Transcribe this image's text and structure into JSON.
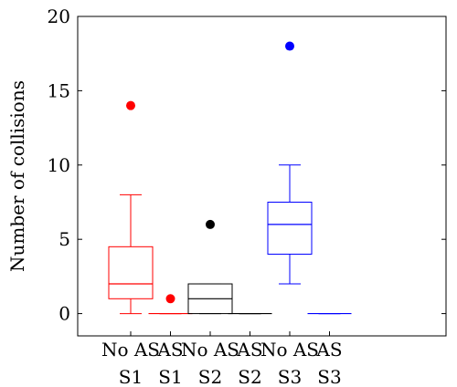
{
  "chart_data": {
    "type": "box",
    "xlabel": "",
    "ylabel": "Number of collisions",
    "ylim": [
      -1.5,
      20
    ],
    "yticks": [
      0,
      5,
      10,
      15,
      20
    ],
    "grid": false,
    "categories": [
      {
        "line1": "No AS",
        "line2": "S1"
      },
      {
        "line1": "AS",
        "line2": "S1"
      },
      {
        "line1": "No AS",
        "line2": "S2"
      },
      {
        "line1": "AS",
        "line2": "S2"
      },
      {
        "line1": "No AS",
        "line2": "S3"
      },
      {
        "line1": "AS",
        "line2": "S3"
      }
    ],
    "boxes": [
      {
        "category": "No AS S1",
        "color": "#ff0000",
        "whisker_low": 0,
        "q1": 1,
        "median": 2,
        "q3": 4.5,
        "whisker_high": 8,
        "outliers": [
          14
        ]
      },
      {
        "category": "AS S1",
        "color": "#ff0000",
        "whisker_low": 0,
        "q1": 0,
        "median": 0,
        "q3": 0,
        "whisker_high": 0,
        "outliers": [
          1
        ]
      },
      {
        "category": "No AS S2",
        "color": "#000000",
        "whisker_low": 0,
        "q1": 0,
        "median": 1,
        "q3": 2,
        "whisker_high": 2,
        "outliers": [
          6
        ]
      },
      {
        "category": "AS S2",
        "color": "#000000",
        "whisker_low": 0,
        "q1": 0,
        "median": 0,
        "q3": 0,
        "whisker_high": 0,
        "outliers": []
      },
      {
        "category": "No AS S3",
        "color": "#0000ff",
        "whisker_low": 2,
        "q1": 4,
        "median": 6,
        "q3": 7.5,
        "whisker_high": 10,
        "outliers": [
          18
        ]
      },
      {
        "category": "AS S3",
        "color": "#0000ff",
        "whisker_low": 0,
        "q1": 0,
        "median": 0,
        "q3": 0,
        "whisker_high": 0,
        "outliers": []
      }
    ]
  }
}
